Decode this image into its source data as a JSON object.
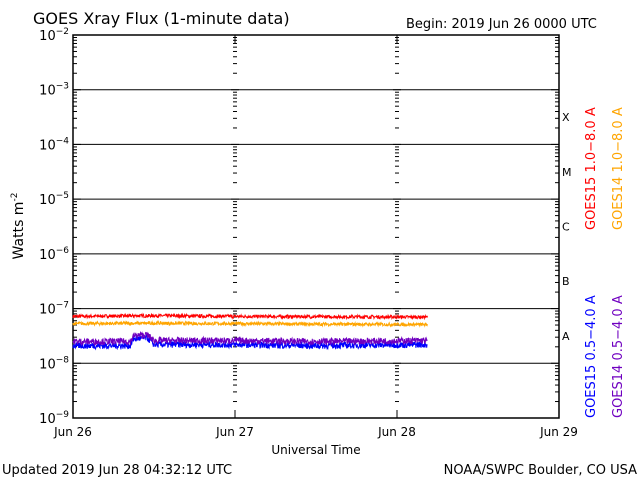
{
  "chart_data": {
    "type": "line",
    "title": "GOES Xray Flux (1-minute data)",
    "begin_label": "Begin:  2019 Jun 26 0000 UTC",
    "xlabel": "Universal Time",
    "ylabel": "Watts m",
    "ylabel_sup": "-2",
    "x_range_hours": [
      0,
      72
    ],
    "x_ticks": [
      {
        "h": 0,
        "label": "Jun 26"
      },
      {
        "h": 24,
        "label": "Jun 27"
      },
      {
        "h": 48,
        "label": "Jun 28"
      },
      {
        "h": 72,
        "label": "Jun 29"
      }
    ],
    "y_scale": "log",
    "ylim_exp": [
      -9,
      -2
    ],
    "y_tick_exps": [
      -9,
      -8,
      -7,
      -6,
      -5,
      -4,
      -3,
      -2
    ],
    "flare_classes": [
      {
        "exp": -8,
        "label": "A"
      },
      {
        "exp": -7,
        "label": "B"
      },
      {
        "exp": -6,
        "label": "C"
      },
      {
        "exp": -5,
        "label": "M"
      },
      {
        "exp": -4,
        "label": "X"
      }
    ],
    "grid": "horizontal at decades",
    "data_end_hours": 52.5,
    "series": [
      {
        "name": "GOES15 1.0-8.0 A",
        "color": "#ff0000",
        "points": [
          [
            0,
            7.2e-08
          ],
          [
            12,
            7.4e-08
          ],
          [
            24,
            7.2e-08
          ],
          [
            36,
            7.1e-08
          ],
          [
            52.5,
            7e-08
          ]
        ]
      },
      {
        "name": "GOES14 1.0-8.0 A",
        "color": "#ffa500",
        "points": [
          [
            0,
            5.3e-08
          ],
          [
            12,
            5.4e-08
          ],
          [
            24,
            5.3e-08
          ],
          [
            36,
            5.2e-08
          ],
          [
            52.5,
            5.1e-08
          ]
        ]
      },
      {
        "name": "GOES15 0.5-4.0 A",
        "color": "#0000ff",
        "points": [
          [
            0,
            2.1e-08
          ],
          [
            8.5,
            2.1e-08
          ],
          [
            9,
            2.8e-08
          ],
          [
            11,
            2.9e-08
          ],
          [
            12,
            2.2e-08
          ],
          [
            24,
            2.2e-08
          ],
          [
            36,
            2.1e-08
          ],
          [
            52.5,
            2.2e-08
          ]
        ]
      },
      {
        "name": "GOES14 0.5-4.0 A",
        "color": "#7000c0",
        "points": [
          [
            0,
            2.5e-08
          ],
          [
            8.5,
            2.5e-08
          ],
          [
            9,
            3.2e-08
          ],
          [
            11,
            3.3e-08
          ],
          [
            12,
            2.6e-08
          ],
          [
            24,
            2.6e-08
          ],
          [
            36,
            2.5e-08
          ],
          [
            52.5,
            2.6e-08
          ]
        ]
      }
    ]
  },
  "footer": {
    "updated": "Updated 2019 Jun 28 04:32:12 UTC",
    "credit": "NOAA/SWPC Boulder, CO USA"
  }
}
